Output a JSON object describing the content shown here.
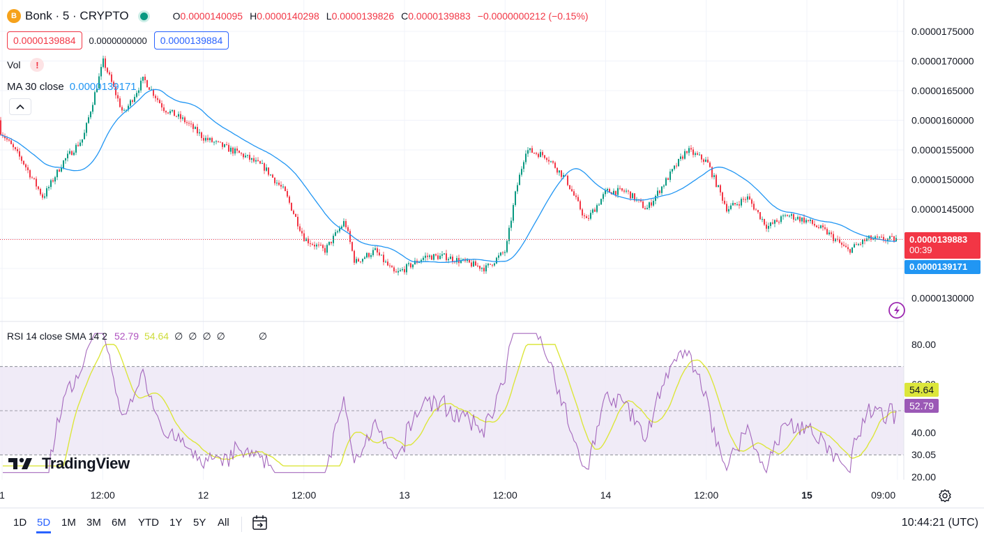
{
  "header": {
    "logo_icon": "bonk-logo-icon",
    "symbol": "Bonk · 5 · CRYPTO",
    "open_label": "O",
    "open": "0.0000140095",
    "high_label": "H",
    "high": "0.0000140298",
    "low_label": "L",
    "low": "0.0000139826",
    "close_label": "C",
    "close": "0.0000139883",
    "change": "−0.0000000212 (−0.15%)",
    "sell_price": "0.0000139884",
    "spread": "0.0000000000",
    "buy_price": "0.0000139884"
  },
  "legend": {
    "vol": "Vol",
    "vol_warning_icon": "!",
    "ma_label": "MA 30 close",
    "ma_value": "0.0000139171",
    "collapse_icon": "chevron-up-icon",
    "rsi_label": "RSI 14 close SMA 14 2",
    "rsi_value": "52.79",
    "rsi_sma_value": "54.64",
    "rsi_empty": [
      "∅",
      "∅",
      "∅",
      "∅",
      "∅"
    ]
  },
  "price_axis": {
    "labels": [
      "0.0000175000",
      "0.0000170000",
      "0.0000165000",
      "0.0000160000",
      "0.0000155000",
      "0.0000150000",
      "0.0000145000",
      "0.0000130000"
    ],
    "last_price_tag": "0.0000139883",
    "countdown": "00:39",
    "ma_tag": "0.0000139171"
  },
  "rsi_axis": {
    "labels": [
      "80.00",
      "60.29",
      "40.00",
      "30.05",
      "20.00"
    ],
    "rsi_sma_tag": "54.64",
    "rsi_tag": "52.79"
  },
  "time_axis": {
    "labels": [
      "1",
      "12:00",
      "12",
      "12:00",
      "13",
      "12:00",
      "14",
      "12:00",
      "15",
      "09:00"
    ]
  },
  "branding": {
    "logo_text": "TradingView"
  },
  "toolbar": {
    "ranges": [
      "1D",
      "5D",
      "1M",
      "3M",
      "6M",
      "YTD",
      "1Y",
      "5Y",
      "All"
    ],
    "active_range": "5D",
    "goto_icon": "calendar-goto-icon",
    "clock": "10:44:21 (UTC)"
  },
  "colors": {
    "up": "#089981",
    "down": "#f23645",
    "ma": "#2196f3",
    "rsi": "#9b59b6",
    "rsi_sma": "#dce63b",
    "rsi_band": "#ede7f6"
  },
  "chart_data": [
    {
      "type": "candlestick",
      "title": "Bonk · 5 · CRYPTO",
      "ylim": [
        1.26e-05,
        1.78e-05
      ],
      "close_path_approx": {
        "x_days": [
          0.95,
          1.1,
          1.2,
          1.3,
          1.4,
          1.5,
          1.6,
          1.7,
          1.8,
          1.9,
          2.0,
          2.2,
          2.3,
          2.4,
          2.5,
          2.6,
          2.7,
          2.75,
          2.85,
          2.95,
          3.0,
          3.1,
          3.2,
          3.3,
          3.4,
          3.5,
          3.55,
          3.6,
          3.7,
          3.8,
          3.9,
          4.0,
          4.1,
          4.2,
          4.3,
          4.4,
          4.5,
          4.6,
          4.7,
          4.8,
          4.9,
          5.0,
          5.1,
          5.2,
          5.3,
          5.35
        ],
        "close": [
          1.6e-05,
          1.53e-05,
          1.47e-05,
          1.53e-05,
          1.57e-05,
          1.7e-05,
          1.61e-05,
          1.67e-05,
          1.62e-05,
          1.6e-05,
          1.57e-05,
          1.54e-05,
          1.52e-05,
          1.48e-05,
          1.4e-05,
          1.38e-05,
          1.43e-05,
          1.36e-05,
          1.38e-05,
          1.34e-05,
          1.35e-05,
          1.37e-05,
          1.37e-05,
          1.36e-05,
          1.35e-05,
          1.38e-05,
          1.48e-05,
          1.55e-05,
          1.54e-05,
          1.5e-05,
          1.43e-05,
          1.48e-05,
          1.48e-05,
          1.45e-05,
          1.5e-05,
          1.55e-05,
          1.53e-05,
          1.45e-05,
          1.47e-05,
          1.42e-05,
          1.44e-05,
          1.43e-05,
          1.41e-05,
          1.38e-05,
          1.4e-05,
          1.39883e-05
        ]
      }
    },
    {
      "type": "line",
      "title": "RSI 14 close SMA 14 2",
      "ylim": [
        20,
        80
      ],
      "reference_lines": [
        70,
        50,
        30
      ],
      "rsi_last": 52.79,
      "rsi_sma_last": 54.64
    }
  ]
}
